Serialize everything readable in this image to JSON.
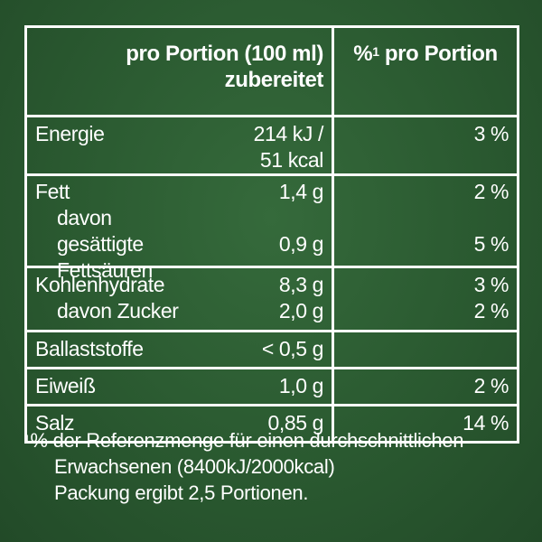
{
  "header": {
    "col_portion_line1": "pro Portion (100 ml)",
    "col_portion_line2": "zubereitet",
    "col_pct_marker": "%",
    "col_pct_sup": "1",
    "col_pct_label": " pro Portion"
  },
  "rows": {
    "energie": {
      "label": "Energie",
      "value": "214 kJ / 51 kcal",
      "pct": "3 %"
    },
    "fett": {
      "label": "Fett",
      "value": "1,4 g",
      "pct": "2 %",
      "sub_label_1": "davon",
      "sub_label_2": "gesättigte Fettsäuren",
      "sub_value": "0,9 g",
      "sub_pct": "5 %"
    },
    "kohlenhydrate": {
      "label": "Kohlenhydrate",
      "value": "8,3 g",
      "pct": "3 %",
      "sub_label": "davon Zucker",
      "sub_value": "2,0 g",
      "sub_pct": "2 %"
    },
    "ballaststoffe": {
      "label": "Ballaststoffe",
      "value": "< 0,5 g",
      "pct": ""
    },
    "eiweiss": {
      "label": "Eiweiß",
      "value": "1,0 g",
      "pct": "2 %"
    },
    "salz": {
      "label": "Salz",
      "value": "0,85 g",
      "pct": "14 %"
    }
  },
  "footnote": {
    "sup": "1",
    "line1": "% der Referenzmenge für einen durchschnittlichen",
    "line2": "Erwachsenen (8400kJ/2000kcal)",
    "line3": "Packung ergibt 2,5 Portionen."
  },
  "colors": {
    "background": "#2a5930",
    "text": "#ffffff",
    "border": "#ffffff"
  }
}
